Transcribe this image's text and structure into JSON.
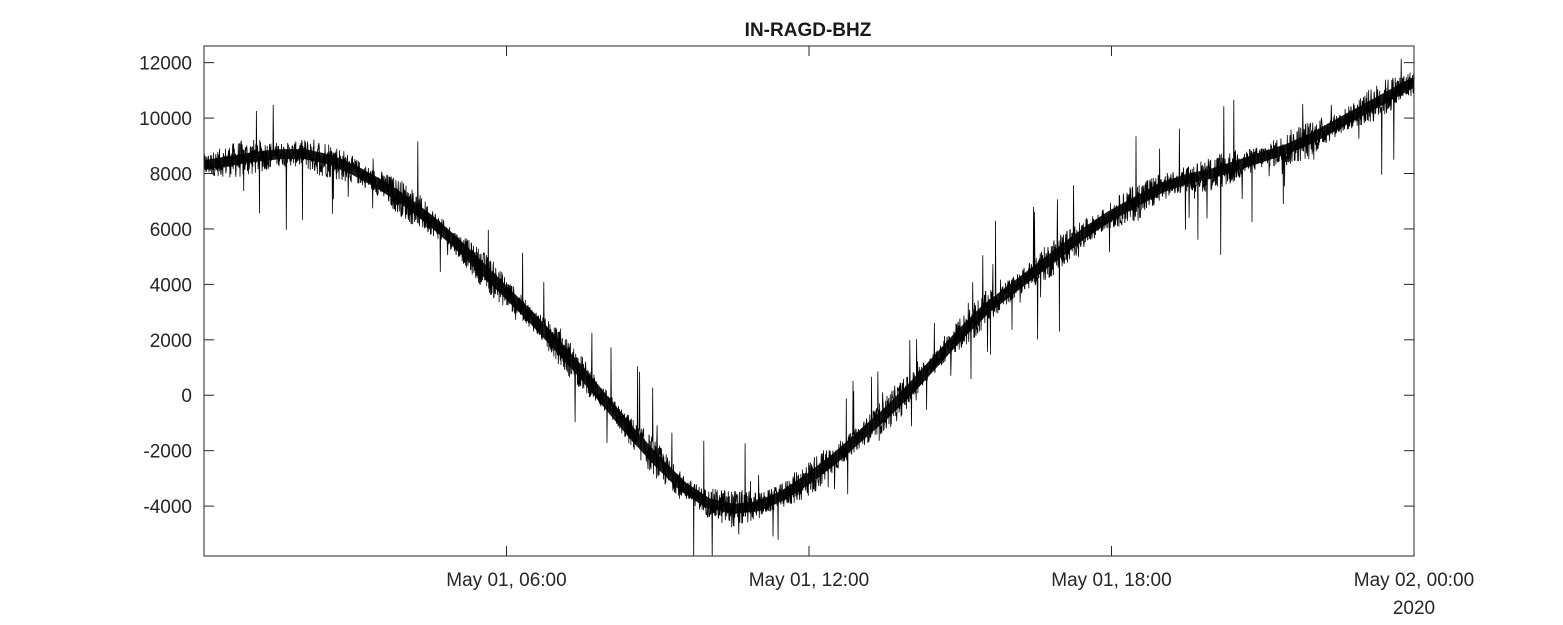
{
  "chart_data": {
    "type": "line",
    "title": "IN-RAGD-BHZ",
    "xlabel": "",
    "ylabel": "",
    "xlim": [
      "2020-05-01 00:00",
      "2020-05-02 00:00"
    ],
    "ylim": [
      -5800,
      12600
    ],
    "x_tick_labels": [
      "May 01, 06:00",
      "May 01, 12:00",
      "May 01, 18:00",
      "May 02, 00:00"
    ],
    "x_tick_values": [
      "2020-05-01 06:00",
      "2020-05-01 12:00",
      "2020-05-01 18:00",
      "2020-05-02 00:00"
    ],
    "x_secondary_label": "2020",
    "y_ticks": [
      -4000,
      -2000,
      0,
      2000,
      4000,
      6000,
      8000,
      10000,
      12000
    ],
    "y_tick_labels": [
      "-4000",
      "-2000",
      "0",
      "2000",
      "4000",
      "6000",
      "8000",
      "10000",
      "12000"
    ],
    "grid": false,
    "box": true,
    "line_color": "#000000",
    "series": [
      {
        "x": [
          "2020-05-01 00:00",
          "2020-05-01 00:30",
          "2020-05-01 01:00",
          "2020-05-01 01:30",
          "2020-05-01 02:00",
          "2020-05-01 02:30",
          "2020-05-01 03:00",
          "2020-05-01 03:30",
          "2020-05-01 04:00",
          "2020-05-01 04:30",
          "2020-05-01 05:00",
          "2020-05-01 05:30",
          "2020-05-01 06:00",
          "2020-05-01 06:30",
          "2020-05-01 07:00",
          "2020-05-01 07:30",
          "2020-05-01 08:00",
          "2020-05-01 08:30",
          "2020-05-01 09:00",
          "2020-05-01 09:30",
          "2020-05-01 10:00",
          "2020-05-01 10:30",
          "2020-05-01 11:00",
          "2020-05-01 11:30",
          "2020-05-01 12:00",
          "2020-05-01 12:30",
          "2020-05-01 13:00",
          "2020-05-01 13:30",
          "2020-05-01 14:00",
          "2020-05-01 14:30",
          "2020-05-01 15:00",
          "2020-05-01 15:30",
          "2020-05-01 16:00",
          "2020-05-01 16:30",
          "2020-05-01 17:00",
          "2020-05-01 17:30",
          "2020-05-01 18:00",
          "2020-05-01 18:30",
          "2020-05-01 19:00",
          "2020-05-01 19:30",
          "2020-05-01 20:00",
          "2020-05-01 20:30",
          "2020-05-01 21:00",
          "2020-05-01 21:30",
          "2020-05-01 22:00",
          "2020-05-01 22:30",
          "2020-05-01 23:00",
          "2020-05-01 23:30",
          "2020-05-02 00:00"
        ],
        "y": [
          8300,
          8450,
          8600,
          8700,
          8700,
          8500,
          8100,
          7600,
          7000,
          6300,
          5500,
          4600,
          3700,
          2800,
          1800,
          800,
          -300,
          -1400,
          -2400,
          -3300,
          -3900,
          -4100,
          -4000,
          -3600,
          -3000,
          -2300,
          -1500,
          -700,
          200,
          1200,
          2200,
          3100,
          3800,
          4500,
          5200,
          5900,
          6500,
          7000,
          7500,
          7800,
          8000,
          8300,
          8600,
          8900,
          9300,
          9800,
          10300,
          10800,
          11300
        ]
      }
    ]
  }
}
